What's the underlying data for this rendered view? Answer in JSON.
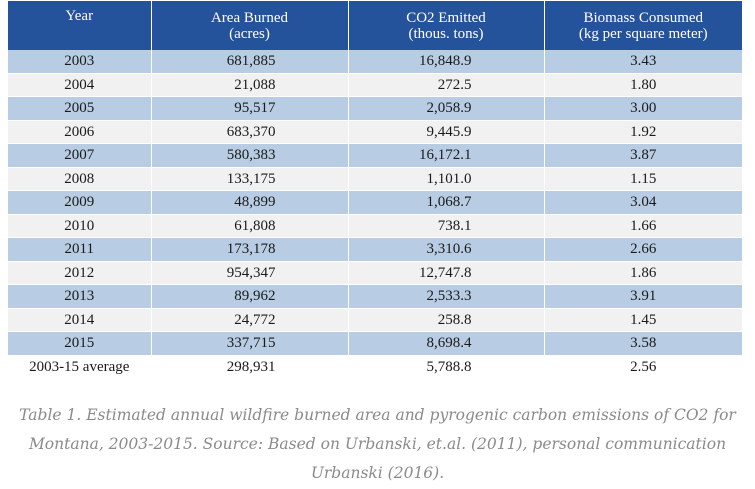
{
  "table": {
    "headers": {
      "year": "Year",
      "area": "Area Burned",
      "area_unit": "(acres)",
      "co2": "CO2 Emitted",
      "co2_unit": "(thous. tons)",
      "biomass": "Biomass Consumed",
      "biomass_unit": "(kg per square meter)"
    },
    "rows": [
      {
        "year": "2003",
        "area": "681,885",
        "co2": "16,848.9",
        "biomass": "3.43"
      },
      {
        "year": "2004",
        "area": "21,088",
        "co2": "272.5",
        "biomass": "1.80"
      },
      {
        "year": "2005",
        "area": "95,517",
        "co2": "2,058.9",
        "biomass": "3.00"
      },
      {
        "year": "2006",
        "area": "683,370",
        "co2": "9,445.9",
        "biomass": "1.92"
      },
      {
        "year": "2007",
        "area": "580,383",
        "co2": "16,172.1",
        "biomass": "3.87"
      },
      {
        "year": "2008",
        "area": "133,175",
        "co2": "1,101.0",
        "biomass": "1.15"
      },
      {
        "year": "2009",
        "area": "48,899",
        "co2": "1,068.7",
        "biomass": "3.04"
      },
      {
        "year": "2010",
        "area": "61,808",
        "co2": "738.1",
        "biomass": "1.66"
      },
      {
        "year": "2011",
        "area": "173,178",
        "co2": "3,310.6",
        "biomass": "2.66"
      },
      {
        "year": "2012",
        "area": "954,347",
        "co2": "12,747.8",
        "biomass": "1.86"
      },
      {
        "year": "2013",
        "area": "89,962",
        "co2": "2,533.3",
        "biomass": "3.91"
      },
      {
        "year": "2014",
        "area": "24,772",
        "co2": "258.8",
        "biomass": "1.45"
      },
      {
        "year": "2015",
        "area": "337,715",
        "co2": "8,698.4",
        "biomass": "3.58"
      }
    ],
    "average": {
      "year": "2003-15 average",
      "area": "298,931",
      "co2": "5,788.8",
      "biomass": "2.56"
    }
  },
  "caption": {
    "line1": "Table 1. Estimated annual wildfire burned area and pyrogenic carbon emissions of CO2 for",
    "line2": "Montana, 2003-2015. Source: Based on Urbanski, et.al. (2011), personal communication",
    "line3": "Urbanski (2016)."
  },
  "colors": {
    "header_bg": "#24539c",
    "row_blue": "#b8cde3",
    "row_gray": "#f1f1f1",
    "caption_text": "#8a8a8a"
  }
}
